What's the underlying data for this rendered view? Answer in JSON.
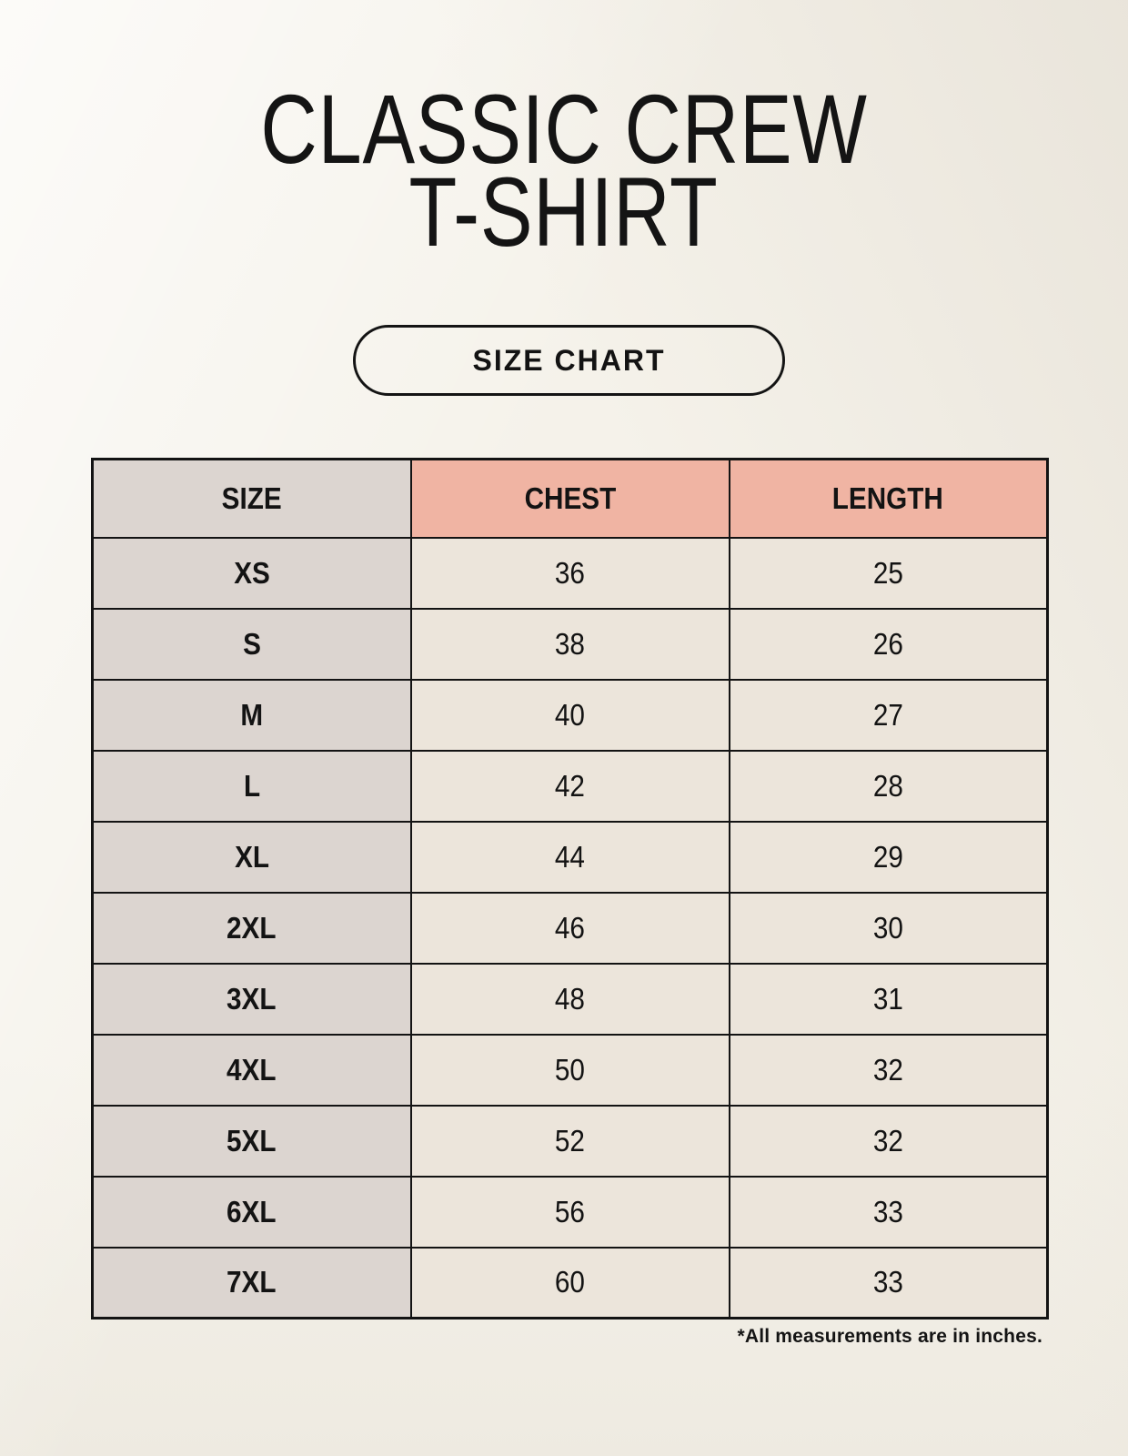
{
  "header": {
    "title_line1": "CLASSIC CREW",
    "title_line2": "T-SHIRT",
    "size_chart_button_label": "SIZE CHART"
  },
  "table": {
    "columns": [
      "SIZE",
      "CHEST",
      "LENGTH"
    ],
    "rows": [
      {
        "size": "XS",
        "chest": "36",
        "length": "25"
      },
      {
        "size": "S",
        "chest": "38",
        "length": "26"
      },
      {
        "size": "M",
        "chest": "40",
        "length": "27"
      },
      {
        "size": "L",
        "chest": "42",
        "length": "28"
      },
      {
        "size": "XL",
        "chest": "44",
        "length": "29"
      },
      {
        "size": "2XL",
        "chest": "46",
        "length": "30"
      },
      {
        "size": "3XL",
        "chest": "48",
        "length": "31"
      },
      {
        "size": "4XL",
        "chest": "50",
        "length": "32"
      },
      {
        "size": "5XL",
        "chest": "52",
        "length": "32"
      },
      {
        "size": "6XL",
        "chest": "56",
        "length": "33"
      },
      {
        "size": "7XL",
        "chest": "60",
        "length": "33"
      }
    ]
  },
  "footnote": "*All measurements are in inches.",
  "colors": {
    "background_cream": "#f5f2ea",
    "accent_pink": "#f0b4a3",
    "size_column_gray": "#dcd5d0",
    "cell_beige": "#ece5db",
    "border_black": "#131313",
    "text_black": "#141414"
  },
  "chart_data": {
    "type": "table",
    "title": "CLASSIC CREW T-SHIRT",
    "columns": [
      "SIZE",
      "CHEST",
      "LENGTH"
    ],
    "rows": [
      [
        "XS",
        36,
        25
      ],
      [
        "S",
        38,
        26
      ],
      [
        "M",
        40,
        27
      ],
      [
        "L",
        42,
        28
      ],
      [
        "XL",
        44,
        29
      ],
      [
        "2XL",
        46,
        30
      ],
      [
        "3XL",
        48,
        31
      ],
      [
        "4XL",
        50,
        32
      ],
      [
        "5XL",
        52,
        32
      ],
      [
        "6XL",
        56,
        33
      ],
      [
        "7XL",
        60,
        33
      ]
    ],
    "units": "inches"
  }
}
